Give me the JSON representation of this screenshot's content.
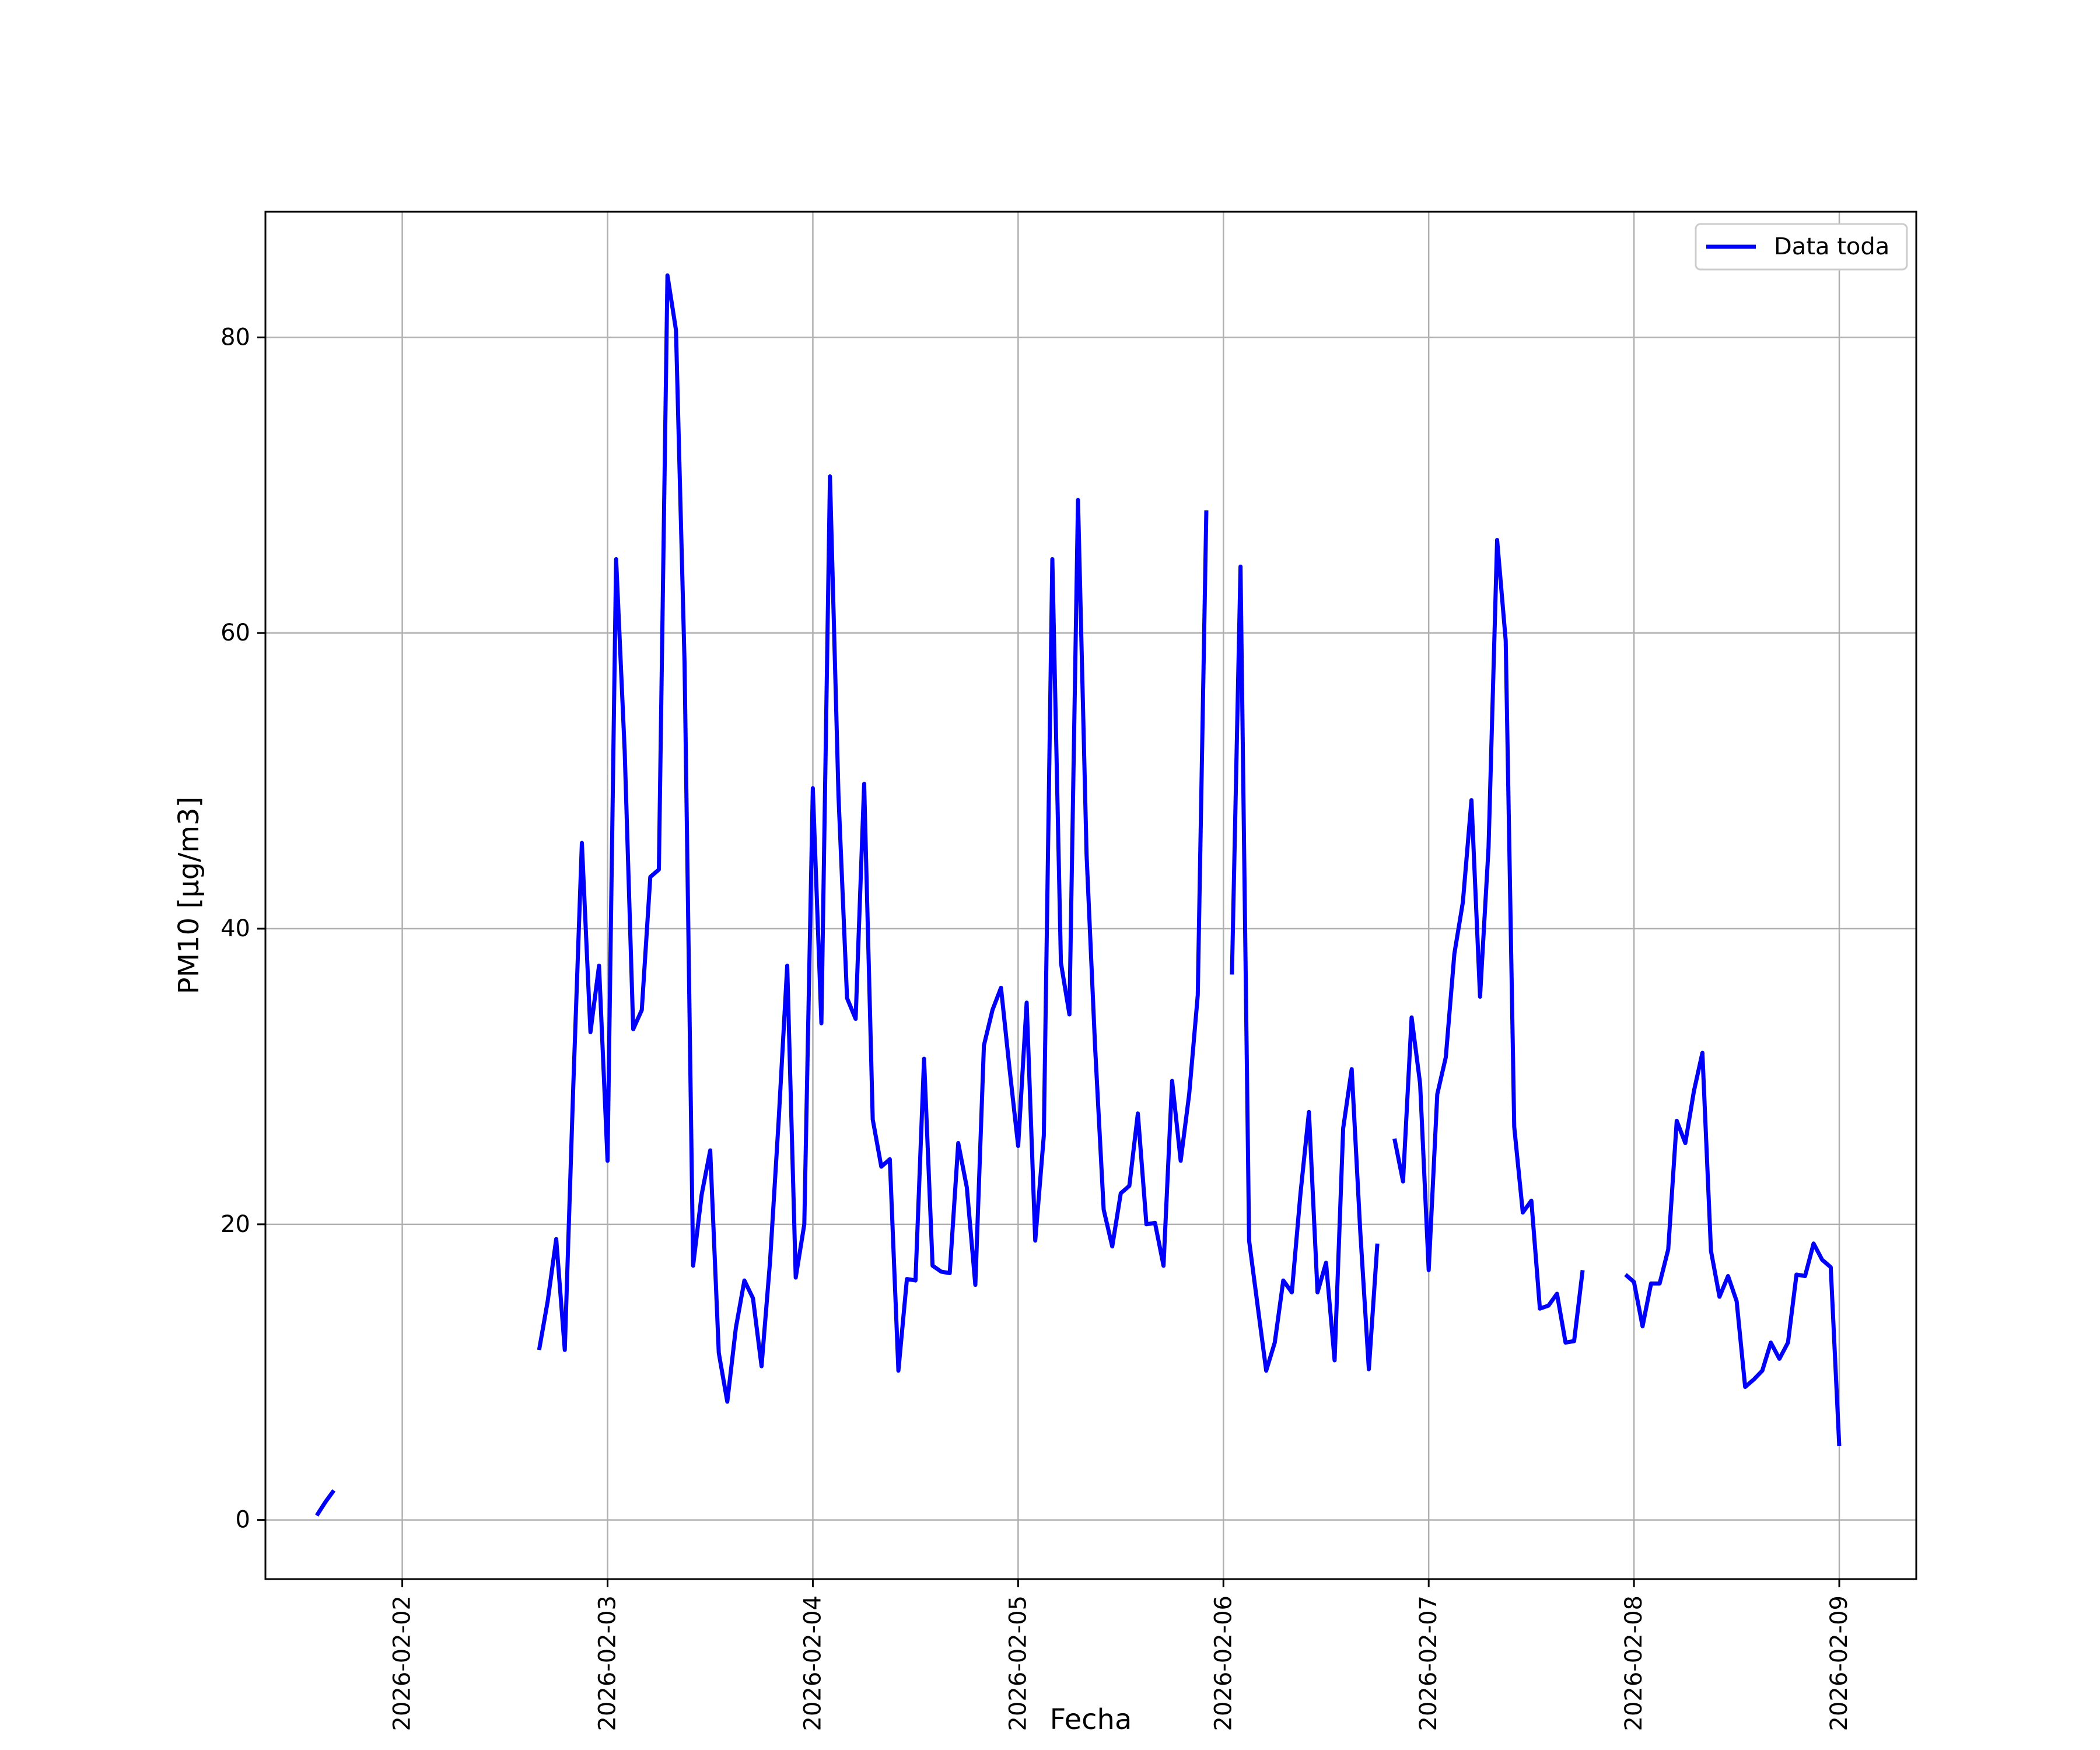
{
  "chart_data": {
    "type": "line",
    "xlabel": "Fecha",
    "ylabel": "PM10 [μg/m3]",
    "xlim": [
      "2026-02-01 08:00",
      "2026-02-09 09:00"
    ],
    "ylim": [
      -4,
      88.5
    ],
    "grid": true,
    "legend_position": "top-right",
    "x_ticks": [
      "2026-02-02",
      "2026-02-03",
      "2026-02-04",
      "2026-02-05",
      "2026-02-06",
      "2026-02-07",
      "2026-02-08",
      "2026-02-09"
    ],
    "y_ticks": [
      "0",
      "20",
      "40",
      "60",
      "80"
    ],
    "series": [
      {
        "name": "Data toda",
        "color": "#0000ff",
        "points": [
          [
            "2026-02-01 14:00",
            0.3
          ],
          [
            "2026-02-01 15:00",
            1.2
          ],
          [
            "2026-02-01 16:00",
            2.0
          ],
          null,
          [
            "2026-02-02 16:00",
            11.5
          ],
          [
            "2026-02-02 17:00",
            14.8
          ],
          [
            "2026-02-02 18:00",
            19.0
          ],
          [
            "2026-02-02 19:00",
            11.5
          ],
          [
            "2026-02-02 20:00",
            29.5
          ],
          [
            "2026-02-02 21:00",
            45.8
          ],
          [
            "2026-02-02 22:00",
            33.0
          ],
          [
            "2026-02-02 23:00",
            37.5
          ],
          [
            "2026-02-03 00:00",
            24.3
          ],
          [
            "2026-02-03 01:00",
            65.0
          ],
          [
            "2026-02-03 02:00",
            52.0
          ],
          [
            "2026-02-03 03:00",
            33.2
          ],
          [
            "2026-02-03 04:00",
            34.5
          ],
          [
            "2026-02-03 05:00",
            43.5
          ],
          [
            "2026-02-03 06:00",
            44.0
          ],
          [
            "2026-02-03 07:00",
            84.2
          ],
          [
            "2026-02-03 08:00",
            80.5
          ],
          [
            "2026-02-03 09:00",
            58.0
          ],
          [
            "2026-02-03 10:00",
            17.2
          ],
          [
            "2026-02-03 11:00",
            22.0
          ],
          [
            "2026-02-03 12:00",
            25.0
          ],
          [
            "2026-02-03 13:00",
            11.3
          ],
          [
            "2026-02-03 14:00",
            8.0
          ],
          [
            "2026-02-03 15:00",
            13.0
          ],
          [
            "2026-02-03 16:00",
            16.2
          ],
          [
            "2026-02-03 17:00",
            15.0
          ],
          [
            "2026-02-03 18:00",
            10.4
          ],
          [
            "2026-02-03 19:00",
            17.5
          ],
          [
            "2026-02-03 20:00",
            27.0
          ],
          [
            "2026-02-03 21:00",
            37.5
          ],
          [
            "2026-02-03 22:00",
            16.4
          ],
          [
            "2026-02-03 23:00",
            20.0
          ],
          [
            "2026-02-04 00:00",
            49.5
          ],
          [
            "2026-02-04 01:00",
            33.6
          ],
          [
            "2026-02-04 02:00",
            70.6
          ],
          [
            "2026-02-04 03:00",
            49.0
          ],
          [
            "2026-02-04 04:00",
            35.3
          ],
          [
            "2026-02-04 05:00",
            33.9
          ],
          [
            "2026-02-04 06:00",
            49.8
          ],
          [
            "2026-02-04 07:00",
            27.1
          ],
          [
            "2026-02-04 08:00",
            23.9
          ],
          [
            "2026-02-04 09:00",
            24.4
          ],
          [
            "2026-02-04 10:00",
            10.1
          ],
          [
            "2026-02-04 11:00",
            16.3
          ],
          [
            "2026-02-04 12:00",
            16.2
          ],
          [
            "2026-02-04 13:00",
            31.2
          ],
          [
            "2026-02-04 14:00",
            17.2
          ],
          [
            "2026-02-04 15:00",
            16.8
          ],
          [
            "2026-02-04 16:00",
            16.7
          ],
          [
            "2026-02-04 17:00",
            25.5
          ],
          [
            "2026-02-04 18:00",
            22.5
          ],
          [
            "2026-02-04 19:00",
            15.9
          ],
          [
            "2026-02-04 20:00",
            32.1
          ],
          [
            "2026-02-04 21:00",
            34.5
          ],
          [
            "2026-02-04 22:00",
            36.0
          ],
          [
            "2026-02-04 23:00",
            30.5
          ],
          [
            "2026-02-05 00:00",
            25.3
          ],
          [
            "2026-02-05 01:00",
            35.0
          ],
          [
            "2026-02-05 02:00",
            18.9
          ],
          [
            "2026-02-05 03:00",
            26.0
          ],
          [
            "2026-02-05 04:00",
            65.0
          ],
          [
            "2026-02-05 05:00",
            37.7
          ],
          [
            "2026-02-05 06:00",
            34.2
          ],
          [
            "2026-02-05 07:00",
            69.0
          ],
          [
            "2026-02-05 08:00",
            45.0
          ],
          [
            "2026-02-05 09:00",
            32.0
          ],
          [
            "2026-02-05 10:00",
            21.0
          ],
          [
            "2026-02-05 11:00",
            18.5
          ],
          [
            "2026-02-05 12:00",
            22.1
          ],
          [
            "2026-02-05 13:00",
            22.6
          ],
          [
            "2026-02-05 14:00",
            27.5
          ],
          [
            "2026-02-05 15:00",
            20.0
          ],
          [
            "2026-02-05 16:00",
            20.1
          ],
          [
            "2026-02-05 17:00",
            17.2
          ],
          [
            "2026-02-05 18:00",
            29.7
          ],
          [
            "2026-02-05 19:00",
            24.3
          ],
          [
            "2026-02-05 20:00",
            28.8
          ],
          [
            "2026-02-05 21:00",
            35.5
          ],
          [
            "2026-02-05 22:00",
            68.3
          ],
          null,
          [
            "2026-02-06 01:00",
            36.9
          ],
          [
            "2026-02-06 02:00",
            64.5
          ],
          [
            "2026-02-06 03:00",
            18.9
          ],
          [
            "2026-02-06 04:00",
            14.5
          ],
          [
            "2026-02-06 05:00",
            10.1
          ],
          [
            "2026-02-06 06:00",
            12.0
          ],
          [
            "2026-02-06 07:00",
            16.2
          ],
          [
            "2026-02-06 08:00",
            15.4
          ],
          [
            "2026-02-06 09:00",
            22.0
          ],
          [
            "2026-02-06 10:00",
            27.6
          ],
          [
            "2026-02-06 11:00",
            15.4
          ],
          [
            "2026-02-06 12:00",
            17.4
          ],
          [
            "2026-02-06 13:00",
            10.8
          ],
          [
            "2026-02-06 14:00",
            26.5
          ],
          [
            "2026-02-06 15:00",
            30.5
          ],
          [
            "2026-02-06 16:00",
            19.5
          ],
          [
            "2026-02-06 17:00",
            10.2
          ],
          [
            "2026-02-06 18:00",
            18.7
          ],
          null,
          [
            "2026-02-06 20:00",
            25.8
          ],
          [
            "2026-02-06 21:00",
            22.9
          ],
          [
            "2026-02-06 22:00",
            34.0
          ],
          [
            "2026-02-06 23:00",
            29.5
          ],
          [
            "2026-02-07 00:00",
            16.9
          ],
          [
            "2026-02-07 01:00",
            28.8
          ],
          [
            "2026-02-07 02:00",
            31.3
          ],
          [
            "2026-02-07 03:00",
            38.3
          ],
          [
            "2026-02-07 04:00",
            41.8
          ],
          [
            "2026-02-07 05:00",
            48.7
          ],
          [
            "2026-02-07 06:00",
            35.4
          ],
          [
            "2026-02-07 07:00",
            45.5
          ],
          [
            "2026-02-07 08:00",
            66.3
          ],
          [
            "2026-02-07 09:00",
            59.5
          ],
          [
            "2026-02-07 10:00",
            26.6
          ],
          [
            "2026-02-07 11:00",
            20.8
          ],
          [
            "2026-02-07 12:00",
            21.6
          ],
          [
            "2026-02-07 13:00",
            14.3
          ],
          [
            "2026-02-07 14:00",
            14.5
          ],
          [
            "2026-02-07 15:00",
            15.3
          ],
          [
            "2026-02-07 16:00",
            12.0
          ],
          [
            "2026-02-07 17:00",
            12.1
          ],
          [
            "2026-02-07 18:00",
            16.9
          ],
          null,
          [
            "2026-02-07 23:00",
            16.6
          ],
          [
            "2026-02-08 00:00",
            16.1
          ],
          [
            "2026-02-08 01:00",
            13.1
          ],
          [
            "2026-02-08 02:00",
            16.0
          ],
          [
            "2026-02-08 03:00",
            16.0
          ],
          [
            "2026-02-08 04:00",
            18.3
          ],
          [
            "2026-02-08 05:00",
            27.0
          ],
          [
            "2026-02-08 06:00",
            25.5
          ],
          [
            "2026-02-08 07:00",
            29.0
          ],
          [
            "2026-02-08 08:00",
            31.6
          ],
          [
            "2026-02-08 09:00",
            18.2
          ],
          [
            "2026-02-08 10:00",
            15.1
          ],
          [
            "2026-02-08 11:00",
            16.5
          ],
          [
            "2026-02-08 12:00",
            14.8
          ],
          [
            "2026-02-08 13:00",
            9.0
          ],
          [
            "2026-02-08 14:00",
            9.5
          ],
          [
            "2026-02-08 15:00",
            10.1
          ],
          [
            "2026-02-08 16:00",
            12.0
          ],
          [
            "2026-02-08 17:00",
            10.9
          ],
          [
            "2026-02-08 18:00",
            12.0
          ],
          [
            "2026-02-08 19:00",
            16.6
          ],
          [
            "2026-02-08 20:00",
            16.5
          ],
          [
            "2026-02-08 21:00",
            18.7
          ],
          [
            "2026-02-08 22:00",
            17.6
          ],
          [
            "2026-02-08 23:00",
            17.1
          ],
          [
            "2026-02-09 00:00",
            5.0
          ]
        ]
      }
    ]
  }
}
